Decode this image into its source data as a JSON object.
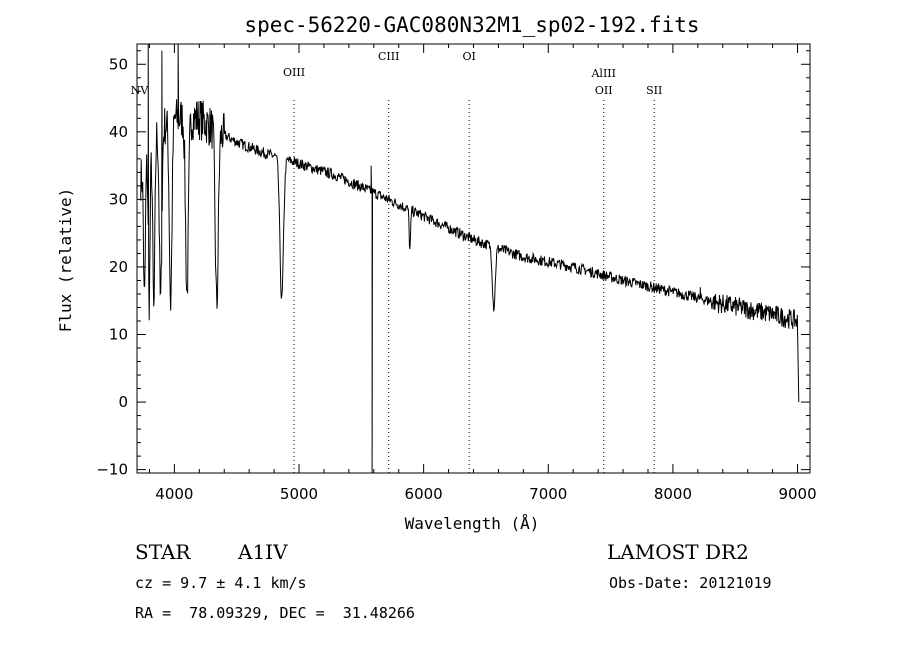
{
  "chart_data": {
    "type": "line",
    "title": "spec-56220-GAC080N32M1_sp02-192.fits",
    "xlabel": "Wavelength (Å)",
    "ylabel": "Flux (relative)",
    "xlim": [
      3700,
      9100
    ],
    "ylim": [
      -10.5,
      53
    ],
    "xticks": [
      4000,
      5000,
      6000,
      7000,
      8000,
      9000
    ],
    "xtick_labels": [
      "4000",
      "5000",
      "6000",
      "7000",
      "8000",
      "9000"
    ],
    "yticks": [
      -10,
      0,
      10,
      20,
      30,
      40,
      50
    ],
    "ytick_labels": [
      "−10",
      "0",
      "10",
      "20",
      "30",
      "40",
      "50"
    ],
    "series": [
      {
        "name": "flux",
        "continuum": [
          [
            3730,
            33
          ],
          [
            3850,
            40
          ],
          [
            4000,
            42
          ],
          [
            4200,
            42
          ],
          [
            4350,
            40
          ],
          [
            4500,
            38.5
          ],
          [
            4700,
            37
          ],
          [
            5000,
            35.3
          ],
          [
            5300,
            33.5
          ],
          [
            5600,
            31
          ],
          [
            6000,
            27.5
          ],
          [
            6400,
            24
          ],
          [
            6800,
            21.5
          ],
          [
            7200,
            20
          ],
          [
            7600,
            18
          ],
          [
            8000,
            16.3
          ],
          [
            8400,
            14.5
          ],
          [
            8800,
            13
          ],
          [
            9000,
            12
          ]
        ],
        "absorption_lines": [
          {
            "center": 3760,
            "depth": 20,
            "width": 10
          },
          {
            "center": 3798,
            "depth": 22,
            "width": 10
          },
          {
            "center": 3835,
            "depth": 26,
            "width": 12
          },
          {
            "center": 3889,
            "depth": 26,
            "width": 14
          },
          {
            "center": 3970,
            "depth": 27,
            "width": 15
          },
          {
            "center": 4101,
            "depth": 26,
            "width": 16
          },
          {
            "center": 4340,
            "depth": 26,
            "width": 17
          },
          {
            "center": 4861,
            "depth": 21,
            "width": 20
          },
          {
            "center": 5890,
            "depth": 6,
            "width": 8
          },
          {
            "center": 6563,
            "depth": 9,
            "width": 16
          }
        ],
        "spikes": [
          {
            "x": 3790,
            "y": 53
          },
          {
            "x": 3900,
            "y": 52
          },
          {
            "x": 4030,
            "y": 53
          },
          {
            "x": 5578,
            "y": 35
          },
          {
            "x": 5586,
            "y": -10.5
          },
          {
            "x": 8220,
            "y": 17
          }
        ],
        "end_point": {
          "x": 9010,
          "y": 0
        }
      }
    ],
    "line_markers": [
      {
        "label": "NV",
        "x": 3720
      },
      {
        "label": "OIII",
        "x": 4960
      },
      {
        "label": "CIII",
        "x": 5720
      },
      {
        "label": "OI",
        "x": 6365
      },
      {
        "label": "AlIII",
        "x": 7445
      },
      {
        "label": "OII",
        "x": 7445
      },
      {
        "label": "SII",
        "x": 7850
      }
    ]
  },
  "info": {
    "object_class": "STAR",
    "subclass": "A1IV",
    "redshift": "cz = 9.7 ± 4.1 km/s",
    "coords": "RA =  78.09329, DEC =  31.48266",
    "survey": "LAMOST DR2",
    "obs_date": "Obs-Date: 20121019"
  }
}
